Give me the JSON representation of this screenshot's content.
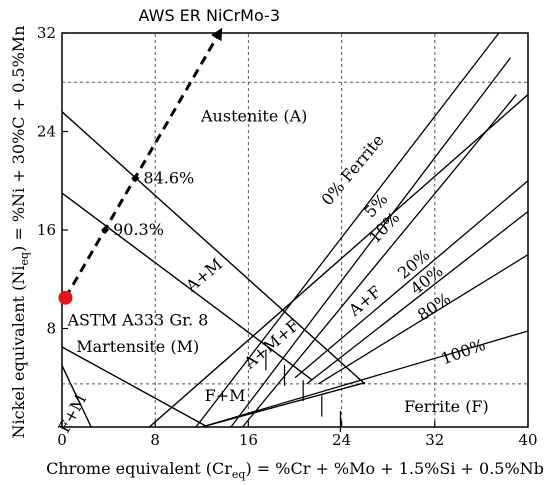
{
  "chart_data": {
    "type": "line",
    "title": "",
    "xlabel_main": "Chrome equivalent (Cr",
    "xlabel_sub": "eq",
    "xlabel_rest": ") = %Cr + %Mo + 1.5%Si + 0.5%Nb",
    "ylabel_main": "Nickel equivalent (Ni",
    "ylabel_sub": "eq",
    "ylabel_rest": ") = %Ni + 30%C + 0.5%Mn",
    "xlim": [
      0,
      40
    ],
    "ylim": [
      0,
      32
    ],
    "x_ticks": [
      0,
      8,
      16,
      24,
      32,
      40
    ],
    "y_ticks": [
      8,
      16,
      24,
      32
    ],
    "x_tick_labels": [
      "0",
      "8",
      "16",
      "24",
      "32",
      "40"
    ],
    "y_tick_labels": [
      "8",
      "16",
      "24",
      "32"
    ],
    "regions": [
      {
        "label": "Austenite (A)",
        "x": 16.5,
        "y": 24.8
      },
      {
        "label": "Martensite (M)",
        "x": 6.5,
        "y": 6.1
      },
      {
        "label": "F+M",
        "x": 14,
        "y": 2.1
      },
      {
        "label": "Ferrite (F)",
        "x": 33,
        "y": 1.2
      },
      {
        "label": "A+M",
        "x": 12.5,
        "y": 12.0,
        "rotate": -40
      },
      {
        "label": "A+M+F",
        "x": 18.3,
        "y": 6.4,
        "rotate": -40
      },
      {
        "label": "A+F",
        "x": 26.3,
        "y": 9.9,
        "rotate": -40
      },
      {
        "label": "F+M",
        "x": 1.3,
        "y": 0.9,
        "rotate": -62
      }
    ],
    "ferrite_lines": [
      {
        "label": "0% Ferrite",
        "x": [
          11.5,
          37.5
        ],
        "y": [
          0,
          32
        ]
      },
      {
        "label": "5%",
        "x": [
          14.5,
          38.5
        ],
        "y": [
          0,
          30
        ]
      },
      {
        "label": "10%",
        "x": [
          15.5,
          39.0
        ],
        "y": [
          0,
          27
        ]
      },
      {
        "label": "20%",
        "x": [
          20.0,
          40.0
        ],
        "y": [
          4.0,
          20.0
        ]
      },
      {
        "label": "40%",
        "x": [
          21.0,
          40.0
        ],
        "y": [
          3.5,
          17.5
        ]
      },
      {
        "label": "80%",
        "x": [
          22.0,
          40.0
        ],
        "y": [
          3.5,
          14.0
        ]
      },
      {
        "label": "100%",
        "x": [
          12.0,
          40.0
        ],
        "y": [
          0,
          7.8
        ]
      }
    ],
    "ferrite_label_positions": [
      {
        "label": "0% Ferrite",
        "x": 25.3,
        "y": 20.6,
        "rotate": -50
      },
      {
        "label": "5%",
        "x": 27.3,
        "y": 17.7,
        "rotate": -48
      },
      {
        "label": "10%",
        "x": 28.0,
        "y": 15.9,
        "rotate": -47
      },
      {
        "label": "20%",
        "x": 30.5,
        "y": 12.9,
        "rotate": -40
      },
      {
        "label": "40%",
        "x": 31.6,
        "y": 11.6,
        "rotate": -38
      },
      {
        "label": "80%",
        "x": 32.2,
        "y": 9.4,
        "rotate": -34
      },
      {
        "label": "100%",
        "x": 34.6,
        "y": 5.7,
        "rotate": -20
      }
    ],
    "boundary_lines": [
      {
        "name": "austenite-upper-boundary",
        "x": [
          0,
          26
        ],
        "y": [
          25.6,
          3.5
        ]
      },
      {
        "name": "austenite-martensite-boundary",
        "x": [
          0,
          21.5
        ],
        "y": [
          19.0,
          3.8
        ]
      },
      {
        "name": "martensite-fm-boundary",
        "x": [
          0,
          12.5
        ],
        "y": [
          6.5,
          0
        ]
      },
      {
        "name": "fm-small-boundary",
        "x": [
          0,
          2.5
        ],
        "y": [
          5.0,
          0
        ]
      },
      {
        "name": "martensite-ferrite-boundary",
        "x": [
          7.5,
          40.0
        ],
        "y": [
          0,
          27.0
        ]
      },
      {
        "name": "ferrite-lower-boundary",
        "x": [
          12.0,
          26.0
        ],
        "y": [
          0,
          3.6
        ]
      }
    ],
    "dashed_gridlines_x": [
      8,
      16,
      24,
      32
    ],
    "dashed_gridlines_y": [
      3.5,
      28.0
    ],
    "arrow_line": {
      "x": [
        0.3,
        13.5
      ],
      "y": [
        10.5,
        32.0
      ]
    },
    "points": [
      {
        "label": "ASTM A333 Gr. 8",
        "x": 0.3,
        "y": 10.5,
        "color": "#e8141a",
        "kind": "start"
      },
      {
        "label": "84.6%",
        "x": 6.3,
        "y": 20.2,
        "color": "#000000",
        "kind": "marker"
      },
      {
        "label": "90.3%",
        "x": 3.7,
        "y": 16.0,
        "color": "#000000",
        "kind": "marker"
      },
      {
        "label": "AWS ER NiCrMo-3",
        "x": 13.5,
        "y": 32.0,
        "color": "#000000",
        "kind": "end"
      }
    ],
    "grid": "dashed-partial"
  }
}
